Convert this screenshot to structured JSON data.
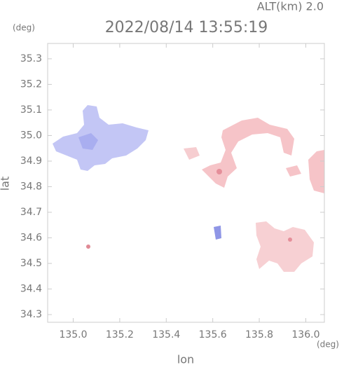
{
  "chart_data": {
    "type": "map",
    "title": "2022/08/14 13:55:19",
    "annotation": "ALT(km) 2.0",
    "xlabel": "lon",
    "ylabel": "lat",
    "x_unit": "(deg)",
    "y_unit": "(deg)",
    "xlim": [
      134.89,
      136.08
    ],
    "ylim": [
      34.27,
      35.36
    ],
    "xticks": [
      {
        "value": 135,
        "label": "135.0"
      },
      135.2,
      135.4,
      135.6,
      135.8,
      {
        "value": 136,
        "label": "136.0"
      }
    ],
    "yticks": [
      34.3,
      34.4,
      34.5,
      34.6,
      34.7,
      34.8,
      34.9,
      {
        "value": 35,
        "label": "35.0"
      },
      35.1,
      35.2,
      35.3
    ],
    "frame_color": "#cccccc"
  }
}
